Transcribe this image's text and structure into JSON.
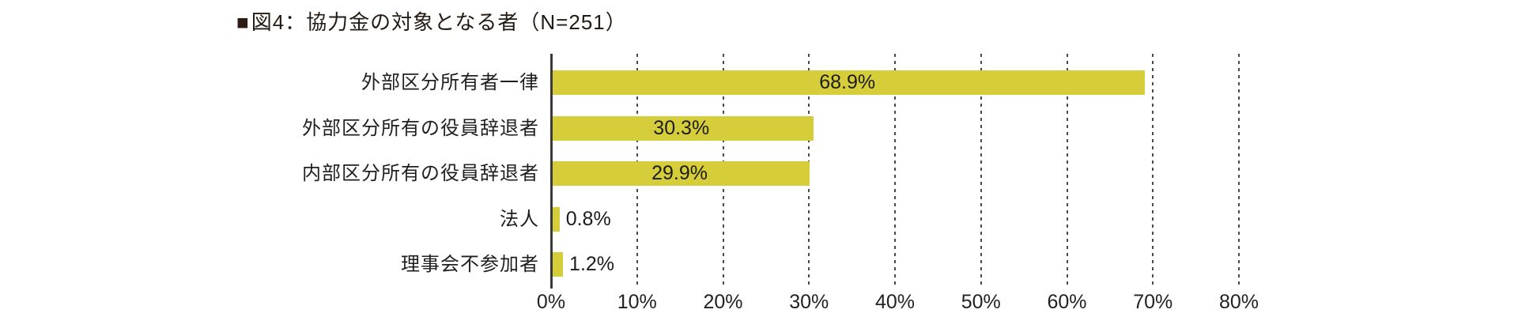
{
  "title": {
    "marker": "■",
    "text": "図4：協力金の対象となる者（N=251）"
  },
  "colors": {
    "bar": "#d5cd3a",
    "title_marker": "#2b1d15",
    "text": "#1f1f1f",
    "axis_line": "#3a3a3a",
    "gridline": "#4a4a4a"
  },
  "chart_data": {
    "type": "bar",
    "orientation": "horizontal",
    "title": "図4：協力金の対象となる者（N=251）",
    "sample_size_note": "N=251",
    "categories": [
      "外部区分所有者一律",
      "外部区分所有の役員辞退者",
      "内部区分所有の役員辞退者",
      "法人",
      "理事会不参加者"
    ],
    "values": [
      68.9,
      30.3,
      29.9,
      0.8,
      1.2
    ],
    "value_labels": [
      "68.9%",
      "30.3%",
      "29.9%",
      "0.8%",
      "1.2%"
    ],
    "xlim": [
      0,
      80
    ],
    "x_tick_values": [
      0,
      10,
      20,
      30,
      40,
      50,
      60,
      70,
      80
    ],
    "x_tick_labels": [
      "0%",
      "10%",
      "20%",
      "30%",
      "40%",
      "50%",
      "60%",
      "70%",
      "80%"
    ],
    "grid": "vertical-dashed",
    "legend": "none",
    "bar_color": "#d5cd3a"
  }
}
